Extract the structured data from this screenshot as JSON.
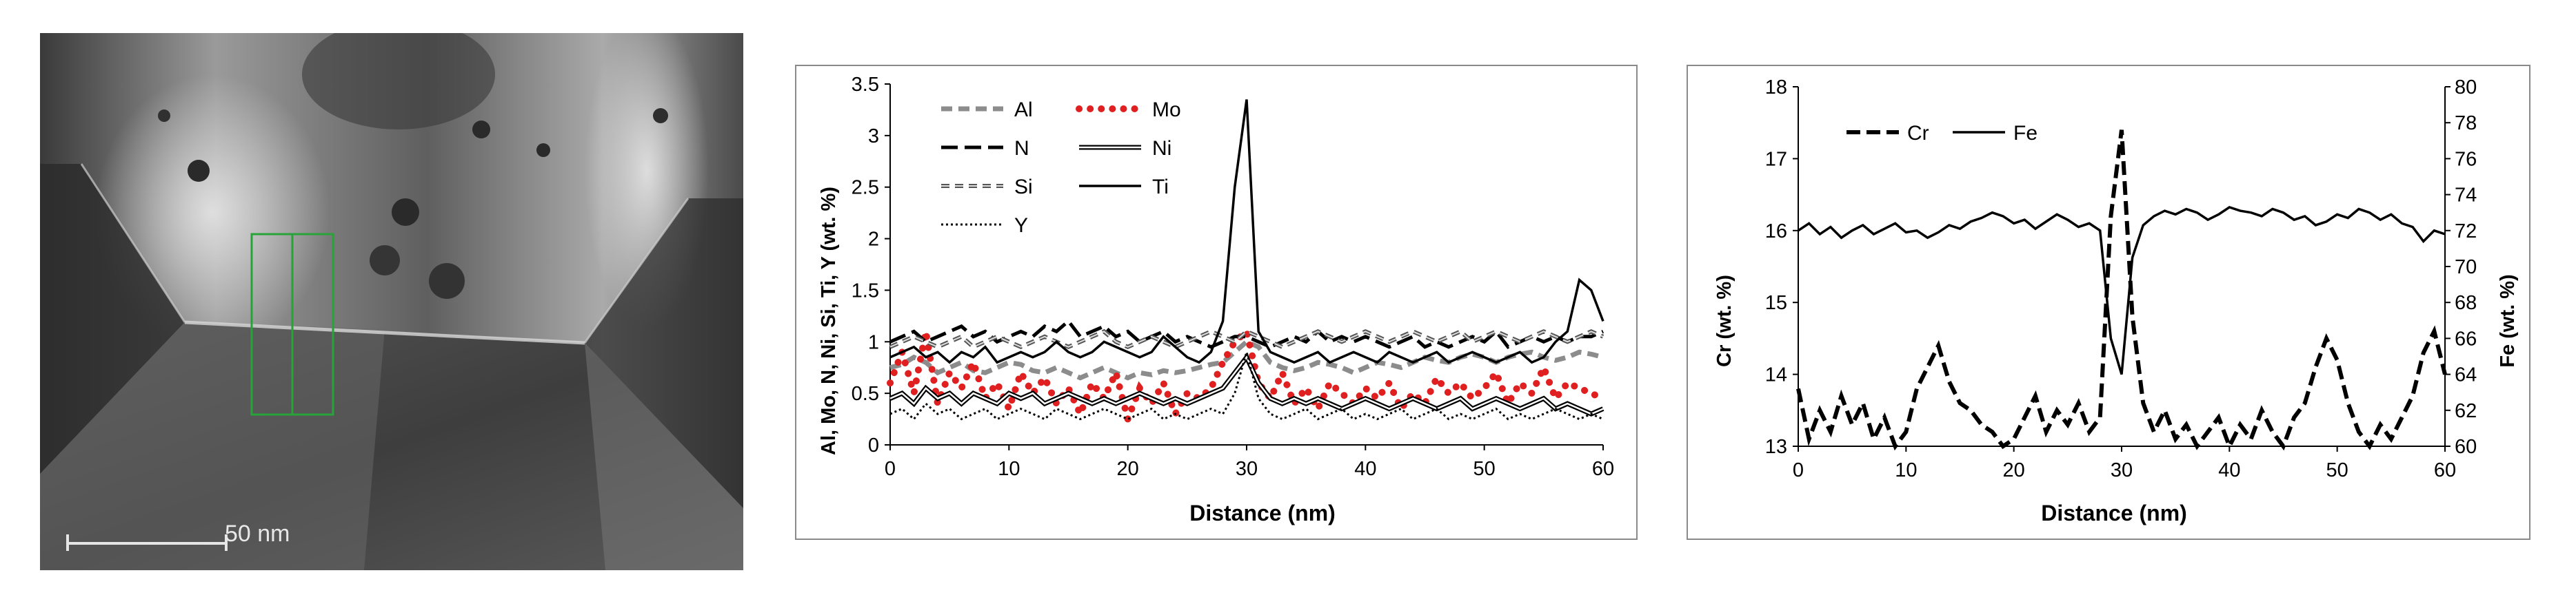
{
  "micrograph": {
    "scale_bar_label": "50 nm"
  },
  "colors": {
    "red": "#e02020",
    "gray": "#8c8c8c",
    "black": "#000000"
  },
  "chart_data": [
    {
      "type": "line",
      "xlabel": "Distance (nm)",
      "ylabel": "Al, Mo, N, Ni, Si, Ti, Y (wt. %)",
      "xlim": [
        0,
        60
      ],
      "ylim": [
        0,
        3.5
      ],
      "x_ticks": [
        "0",
        "10",
        "20",
        "30",
        "40",
        "50",
        "60"
      ],
      "y_ticks": [
        "0",
        "0.5",
        "1",
        "1.5",
        "2",
        "2.5",
        "3",
        "3.5"
      ],
      "legend": [
        "Al",
        "Mo",
        "N",
        "Ni",
        "Si",
        "Ti",
        "Y"
      ],
      "x": [
        0,
        1,
        2,
        3,
        4,
        5,
        6,
        7,
        8,
        9,
        10,
        11,
        12,
        13,
        14,
        15,
        16,
        17,
        18,
        19,
        20,
        21,
        22,
        23,
        24,
        25,
        26,
        27,
        28,
        29,
        30,
        31,
        32,
        33,
        34,
        35,
        36,
        37,
        38,
        39,
        40,
        41,
        42,
        43,
        44,
        45,
        46,
        47,
        48,
        49,
        50,
        51,
        52,
        53,
        54,
        55,
        56,
        57,
        58,
        59,
        60
      ],
      "series": [
        {
          "name": "Al",
          "style": "dash-gray",
          "values": [
            0.75,
            0.78,
            0.85,
            0.8,
            0.7,
            0.75,
            0.8,
            0.72,
            0.7,
            0.75,
            0.8,
            0.78,
            0.72,
            0.7,
            0.75,
            0.7,
            0.65,
            0.7,
            0.75,
            0.7,
            0.65,
            0.7,
            0.68,
            0.72,
            0.7,
            0.72,
            0.75,
            0.78,
            0.8,
            0.9,
            1.0,
            0.95,
            0.8,
            0.75,
            0.72,
            0.75,
            0.8,
            0.78,
            0.75,
            0.7,
            0.75,
            0.8,
            0.78,
            0.75,
            0.8,
            0.85,
            0.82,
            0.8,
            0.85,
            0.88,
            0.85,
            0.8,
            0.85,
            0.88,
            0.9,
            0.85,
            0.82,
            0.85,
            0.9,
            0.88,
            0.85
          ]
        },
        {
          "name": "Mo",
          "style": "dot-red",
          "values": [
            0.6,
            0.9,
            0.5,
            1.1,
            0.4,
            0.7,
            0.55,
            0.8,
            0.45,
            0.6,
            0.35,
            0.7,
            0.5,
            0.65,
            0.4,
            0.55,
            0.3,
            0.6,
            0.45,
            0.7,
            0.25,
            0.55,
            0.4,
            0.6,
            0.3,
            0.5,
            0.45,
            0.55,
            0.8,
            1.0,
            1.1,
            0.6,
            0.45,
            0.7,
            0.4,
            0.55,
            0.35,
            0.6,
            0.5,
            0.4,
            0.55,
            0.45,
            0.6,
            0.35,
            0.5,
            0.4,
            0.65,
            0.5,
            0.6,
            0.45,
            0.55,
            0.7,
            0.4,
            0.6,
            0.5,
            0.75,
            0.45,
            0.6,
            0.55,
            0.5,
            0.45
          ]
        },
        {
          "name": "N",
          "style": "longdash-black",
          "values": [
            1.0,
            1.05,
            1.1,
            1.0,
            1.05,
            1.1,
            1.15,
            1.05,
            1.1,
            1.0,
            1.05,
            1.1,
            1.05,
            1.15,
            1.1,
            1.2,
            1.05,
            1.1,
            1.15,
            1.05,
            1.1,
            1.0,
            1.05,
            1.1,
            1.0,
            1.05,
            1.0,
            0.95,
            1.0,
            1.05,
            1.05,
            1.0,
            0.95,
            1.0,
            1.05,
            1.0,
            1.1,
            1.0,
            1.05,
            1.0,
            1.05,
            1.0,
            0.95,
            1.0,
            1.05,
            0.95,
            1.0,
            0.95,
            1.0,
            1.05,
            1.0,
            1.1,
            0.95,
            1.0,
            1.05,
            1.0,
            1.05,
            1.0,
            1.05,
            1.05,
            1.1
          ]
        },
        {
          "name": "Ni",
          "style": "double-black",
          "values": [
            0.45,
            0.5,
            0.4,
            0.55,
            0.45,
            0.5,
            0.4,
            0.5,
            0.45,
            0.4,
            0.5,
            0.45,
            0.5,
            0.4,
            0.45,
            0.5,
            0.45,
            0.4,
            0.45,
            0.4,
            0.45,
            0.5,
            0.45,
            0.4,
            0.45,
            0.4,
            0.45,
            0.5,
            0.55,
            0.7,
            0.85,
            0.6,
            0.45,
            0.4,
            0.45,
            0.4,
            0.45,
            0.4,
            0.35,
            0.4,
            0.45,
            0.4,
            0.35,
            0.4,
            0.45,
            0.4,
            0.35,
            0.4,
            0.45,
            0.35,
            0.4,
            0.45,
            0.4,
            0.35,
            0.4,
            0.45,
            0.35,
            0.4,
            0.35,
            0.3,
            0.35
          ]
        },
        {
          "name": "Si",
          "style": "dash-outline",
          "values": [
            0.95,
            1.0,
            1.05,
            1.0,
            0.95,
            1.0,
            1.05,
            0.95,
            1.0,
            1.05,
            1.0,
            0.95,
            1.0,
            1.05,
            1.0,
            0.95,
            1.0,
            1.05,
            1.1,
            1.0,
            0.95,
            1.0,
            1.05,
            1.0,
            0.95,
            1.0,
            1.05,
            1.1,
            1.05,
            1.0,
            1.1,
            1.05,
            1.0,
            0.95,
            1.0,
            1.05,
            1.1,
            1.05,
            1.0,
            1.05,
            1.1,
            1.05,
            1.0,
            1.05,
            1.1,
            1.05,
            1.0,
            1.05,
            1.1,
            1.0,
            1.05,
            1.1,
            1.05,
            1.0,
            1.05,
            1.1,
            1.05,
            1.0,
            1.05,
            1.1,
            1.05
          ]
        },
        {
          "name": "Ti",
          "style": "solid-black",
          "values": [
            0.85,
            0.9,
            0.95,
            0.85,
            0.9,
            0.8,
            0.9,
            0.85,
            0.95,
            0.8,
            0.85,
            0.9,
            0.85,
            0.9,
            1.0,
            0.9,
            0.85,
            0.9,
            1.0,
            0.95,
            0.9,
            0.85,
            0.9,
            1.05,
            0.95,
            0.85,
            0.8,
            0.9,
            1.2,
            2.5,
            3.35,
            1.1,
            0.9,
            0.85,
            0.8,
            0.85,
            0.9,
            0.8,
            0.85,
            0.9,
            0.85,
            0.8,
            0.9,
            0.85,
            0.8,
            0.85,
            0.9,
            0.8,
            0.85,
            0.9,
            0.85,
            0.8,
            0.85,
            0.9,
            0.8,
            0.85,
            1.0,
            1.1,
            1.6,
            1.5,
            1.2
          ]
        },
        {
          "name": "Y",
          "style": "dot-black",
          "values": [
            0.3,
            0.35,
            0.25,
            0.4,
            0.3,
            0.35,
            0.25,
            0.3,
            0.35,
            0.25,
            0.3,
            0.35,
            0.3,
            0.25,
            0.35,
            0.3,
            0.25,
            0.3,
            0.35,
            0.3,
            0.25,
            0.3,
            0.35,
            0.25,
            0.3,
            0.25,
            0.3,
            0.35,
            0.3,
            0.5,
            0.9,
            0.45,
            0.3,
            0.25,
            0.3,
            0.35,
            0.25,
            0.3,
            0.35,
            0.25,
            0.3,
            0.25,
            0.3,
            0.35,
            0.25,
            0.3,
            0.35,
            0.25,
            0.3,
            0.25,
            0.3,
            0.35,
            0.25,
            0.3,
            0.25,
            0.3,
            0.35,
            0.3,
            0.25,
            0.3,
            0.25
          ]
        }
      ]
    },
    {
      "type": "line",
      "xlabel": "Distance (nm)",
      "ylabel": "Cr (wt. %)",
      "y2label": "Fe (wt. %)",
      "xlim": [
        0,
        60
      ],
      "ylim": [
        13,
        18
      ],
      "y2lim": [
        60,
        80
      ],
      "x_ticks": [
        "0",
        "10",
        "20",
        "30",
        "40",
        "50",
        "60"
      ],
      "y_ticks": [
        "13",
        "14",
        "15",
        "16",
        "17",
        "18"
      ],
      "y2_ticks": [
        "60",
        "62",
        "64",
        "66",
        "68",
        "70",
        "72",
        "74",
        "76",
        "78",
        "80"
      ],
      "legend": [
        "Cr",
        "Fe"
      ],
      "x": [
        0,
        1,
        2,
        3,
        4,
        5,
        6,
        7,
        8,
        9,
        10,
        11,
        12,
        13,
        14,
        15,
        16,
        17,
        18,
        19,
        20,
        21,
        22,
        23,
        24,
        25,
        26,
        27,
        28,
        29,
        30,
        31,
        32,
        33,
        34,
        35,
        36,
        37,
        38,
        39,
        40,
        41,
        42,
        43,
        44,
        45,
        46,
        47,
        48,
        49,
        50,
        51,
        52,
        53,
        54,
        55,
        56,
        57,
        58,
        59,
        60
      ],
      "series": [
        {
          "name": "Cr",
          "axis": "left",
          "style": "dash-black",
          "values": [
            13.8,
            13.1,
            13.5,
            13.2,
            13.7,
            13.3,
            13.6,
            13.1,
            13.4,
            13.0,
            13.2,
            13.8,
            14.1,
            14.4,
            13.9,
            13.6,
            13.5,
            13.3,
            13.2,
            13.0,
            13.1,
            13.4,
            13.7,
            13.2,
            13.5,
            13.3,
            13.6,
            13.2,
            13.4,
            16.2,
            17.4,
            14.8,
            13.6,
            13.2,
            13.5,
            13.1,
            13.3,
            13.0,
            13.2,
            13.4,
            13.0,
            13.3,
            13.1,
            13.5,
            13.2,
            13.0,
            13.4,
            13.6,
            14.1,
            14.5,
            14.2,
            13.6,
            13.2,
            13.0,
            13.3,
            13.1,
            13.4,
            13.7,
            14.3,
            14.6,
            14.0
          ]
        },
        {
          "name": "Fe",
          "axis": "right",
          "style": "solid-black",
          "values": [
            72.0,
            72.4,
            71.8,
            72.2,
            71.6,
            72.0,
            72.3,
            71.8,
            72.1,
            72.4,
            71.9,
            72.0,
            71.6,
            71.9,
            72.3,
            72.1,
            72.5,
            72.7,
            73.0,
            72.8,
            72.4,
            72.6,
            72.1,
            72.5,
            72.9,
            72.6,
            72.2,
            72.4,
            72.0,
            66.0,
            64.0,
            70.5,
            72.3,
            72.8,
            73.1,
            72.9,
            73.2,
            73.0,
            72.6,
            72.9,
            73.3,
            73.1,
            73.0,
            72.8,
            73.2,
            73.0,
            72.6,
            72.8,
            72.3,
            72.5,
            72.9,
            72.7,
            73.2,
            73.0,
            72.6,
            72.9,
            72.4,
            72.2,
            71.4,
            72.0,
            71.8
          ]
        }
      ]
    }
  ]
}
